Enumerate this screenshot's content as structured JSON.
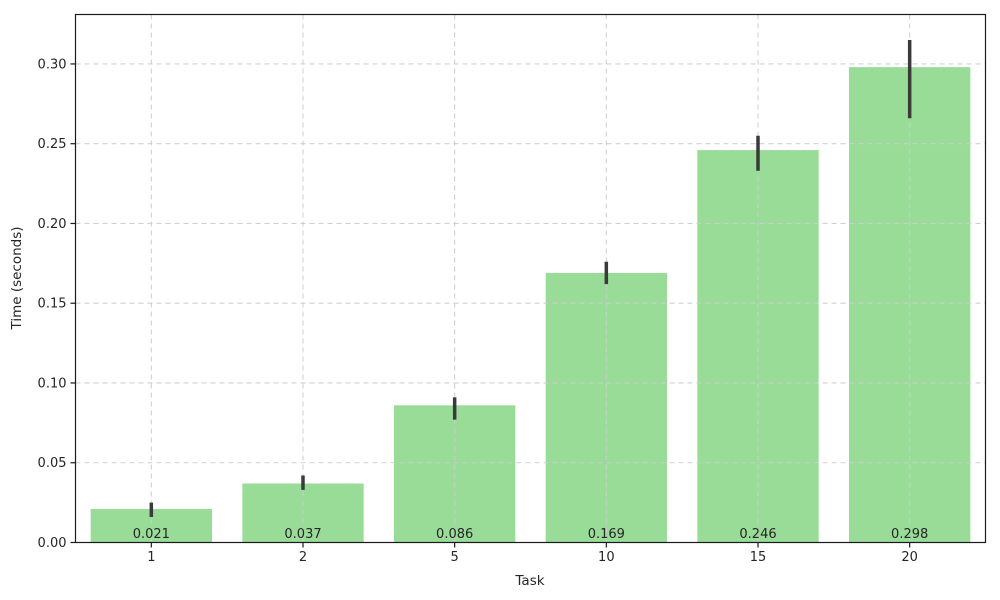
{
  "chart_data": {
    "type": "bar",
    "title": "",
    "xlabel": "Task",
    "ylabel": "Time (seconds)",
    "categories": [
      "1",
      "2",
      "5",
      "10",
      "15",
      "20"
    ],
    "values": [
      0.021,
      0.037,
      0.086,
      0.169,
      0.246,
      0.298
    ],
    "value_labels": [
      "0.021",
      "0.037",
      "0.086",
      "0.169",
      "0.246",
      "0.298"
    ],
    "error_ranges": [
      [
        0.016,
        0.025
      ],
      [
        0.033,
        0.042
      ],
      [
        0.077,
        0.091
      ],
      [
        0.162,
        0.176
      ],
      [
        0.233,
        0.255
      ],
      [
        0.266,
        0.315
      ]
    ],
    "ylim": [
      0,
      0.331
    ],
    "yticks": [
      0.0,
      0.05,
      0.1,
      0.15,
      0.2,
      0.25,
      0.3
    ],
    "ytick_labels": [
      "0.00",
      "0.05",
      "0.10",
      "0.15",
      "0.20",
      "0.25",
      "0.30"
    ],
    "grid": true,
    "legend": null,
    "bar_width_fraction": 0.8,
    "colors": {
      "bar_fill": "#98dc98",
      "error_bar": "#3a3a3a",
      "grid": "#cccccc",
      "spine": "#1a1a1a",
      "tick_label": "#262626",
      "value_label": "#3d3d3d",
      "background": "#ffffff"
    }
  }
}
